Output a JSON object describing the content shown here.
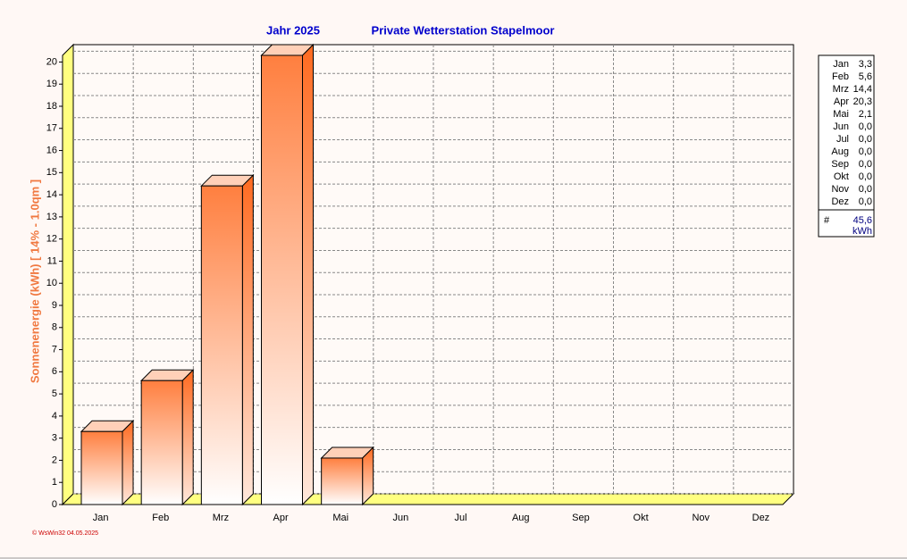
{
  "chart_data": {
    "type": "bar",
    "title": "Jahr  2025",
    "subtitle": "Private Wetterstation Stapelmoor",
    "y_label": "Sonnenenergie  (kWh)    [ 14% - 1.0qm ]",
    "categories": [
      "Jan",
      "Feb",
      "Mrz",
      "Apr",
      "Mai",
      "Jun",
      "Jul",
      "Aug",
      "Sep",
      "Okt",
      "Nov",
      "Dez"
    ],
    "values": [
      3.3,
      5.6,
      14.4,
      20.3,
      2.1,
      0,
      0,
      0,
      0,
      0,
      0,
      0
    ],
    "value_labels": [
      "3,3",
      "5,6",
      "14,4",
      "20,3",
      "2,1",
      "0,0",
      "0,0",
      "0,0",
      "0,0",
      "0,0",
      "0,0",
      "0,0"
    ],
    "color": "#ff7f3f",
    "ylim": [
      0,
      20.3
    ],
    "yticks": [
      0,
      1,
      2,
      3,
      4,
      5,
      6,
      7,
      8,
      9,
      10,
      11,
      12,
      13,
      14,
      15,
      16,
      17,
      18,
      19,
      20
    ],
    "grid": true,
    "legend_total_symbol": "#",
    "legend_total": "45,6",
    "legend_unit": "kWh",
    "footer": "© WsWin32  04.05.2025"
  }
}
